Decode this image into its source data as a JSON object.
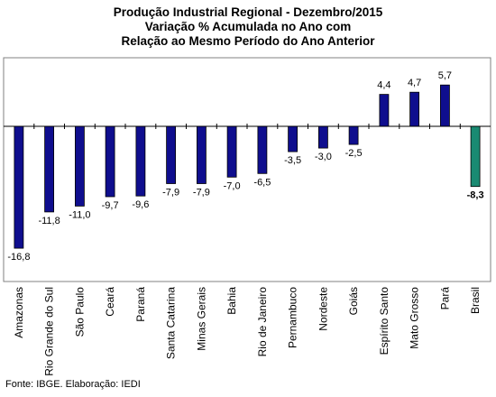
{
  "title_lines": [
    "Produção Industrial Regional - Dezembro/2015",
    "Variação % Acumulada no Ano com",
    "Relação ao Mesmo Período do Ano Anterior"
  ],
  "source": "Fonte: IBGE. Elaboração: IEDI",
  "chart_data": {
    "type": "bar",
    "title": "Produção Industrial Regional - Dezembro/2015 Variação % Acumulada no Ano com Relação ao Mesmo Período do Ano Anterior",
    "categories": [
      "Amazonas",
      "Rio Grande do Sul",
      "São Paulo",
      "Ceará",
      "Paraná",
      "Santa Catarina",
      "Minas Gerais",
      "Bahia",
      "Rio de Janeiro",
      "Pernambuco",
      "Nordeste",
      "Goiás",
      "Espírito Santo",
      "Mato Grosso",
      "Pará",
      "Brasil"
    ],
    "labels": [
      "-16,8",
      "-11,8",
      "-11,0",
      "-9,7",
      "-9,6",
      "-7,9",
      "-7,9",
      "-7,0",
      "-6,5",
      "-3,5",
      "-3,0",
      "-2,5",
      "4,4",
      "4,7",
      "5,7",
      "-8,3"
    ],
    "values": [
      -16.8,
      -11.8,
      -11.0,
      -9.7,
      -9.6,
      -7.9,
      -7.9,
      -7.0,
      -6.5,
      -3.5,
      -3.0,
      -2.5,
      4.4,
      4.7,
      5.7,
      -8.3
    ],
    "ylim": [
      -18,
      8
    ],
    "grid": false,
    "legend": "none",
    "colors": {
      "bar": "#0f0e8e",
      "highlight": "#1a8a72",
      "border": "#000000"
    },
    "highlight_category": "Brasil"
  }
}
